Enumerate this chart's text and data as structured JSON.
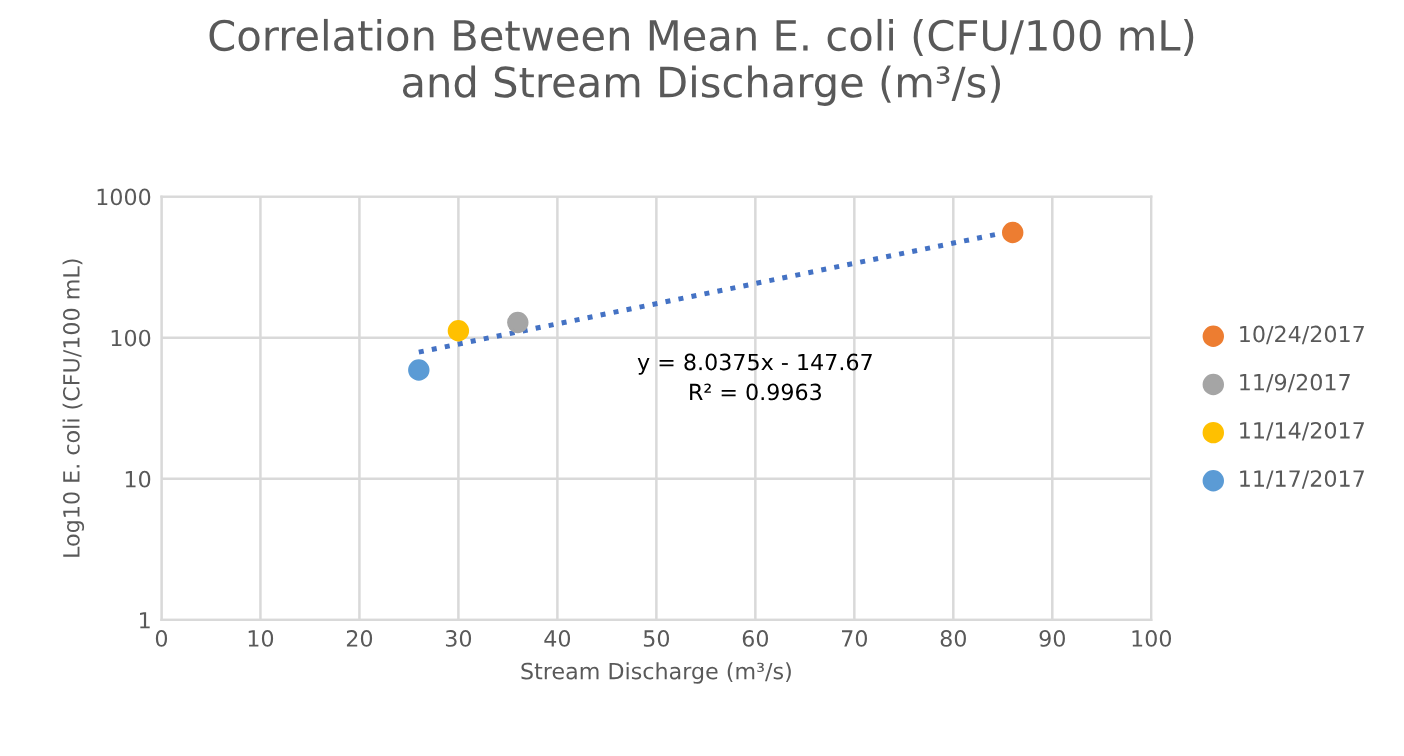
{
  "chart_data": {
    "type": "scatter",
    "title": "Correlation Between Mean E. coli (CFU/100 mL)\nand Stream Discharge (m³/s)",
    "xlabel": "Stream Discharge (m³/s)",
    "ylabel": "Log10 E. coli (CFU/100 mL)",
    "series": [
      {
        "name": "10/24/2017",
        "color": "#ed7d31",
        "x": [
          86
        ],
        "values": [
          556
        ]
      },
      {
        "name": "11/9/2017",
        "color": "#a5a5a5",
        "x": [
          36
        ],
        "values": [
          128
        ]
      },
      {
        "name": "11/14/2017",
        "color": "#ffc000",
        "x": [
          30
        ],
        "values": [
          112
        ]
      },
      {
        "name": "11/17/2017",
        "color": "#5b9bd5",
        "x": [
          26
        ],
        "values": [
          59
        ]
      },
      {
        "type": "line",
        "color": "#4472c4",
        "line_style": "dotted",
        "marker": "none",
        "x": [
          26,
          86
        ],
        "values": [
          79,
          570
        ]
      }
    ],
    "annotations": [
      "y = 8.0375x - 147.67\nR² = 0.9963"
    ],
    "xlim": [
      0,
      100
    ],
    "xticks": [
      0,
      10,
      20,
      30,
      40,
      50,
      60,
      70,
      80,
      90,
      100
    ],
    "ylim": [
      1,
      1000
    ],
    "yticks": [
      1,
      10,
      100,
      1000
    ],
    "log": "y",
    "grid": true,
    "legend": "right",
    "marker": "circle"
  }
}
